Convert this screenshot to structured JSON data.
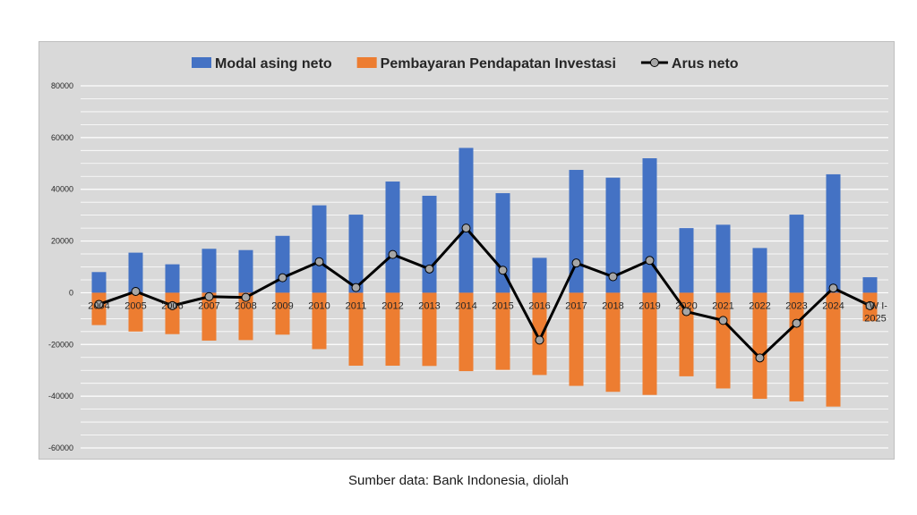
{
  "chart_data": {
    "type": "bar",
    "categories": [
      "2004",
      "2005",
      "2006",
      "2007",
      "2008",
      "2009",
      "2010",
      "2011",
      "2012",
      "2013",
      "2014",
      "2015",
      "2016",
      "2017",
      "2018",
      "2019",
      "2020",
      "2021",
      "2022",
      "2023",
      "2024",
      "TW I-2025"
    ],
    "series": [
      {
        "name": "Modal asing neto",
        "type": "bar",
        "color": "#4472c4",
        "values": [
          8000,
          15500,
          11000,
          17000,
          16500,
          22000,
          33800,
          30200,
          43000,
          37500,
          56000,
          38500,
          13500,
          47500,
          44500,
          52000,
          25000,
          26300,
          17300,
          30200,
          45800,
          6000
        ]
      },
      {
        "name": "Pembayaran Pendapatan Investasi",
        "type": "bar",
        "color": "#ed7d31",
        "values": [
          -12500,
          -15000,
          -16000,
          -18500,
          -18300,
          -16200,
          -21800,
          -28200,
          -28200,
          -28300,
          -30300,
          -29800,
          -31800,
          -36000,
          -38300,
          -39500,
          -32300,
          -37000,
          -41000,
          -42000,
          -44000,
          -11000
        ]
      },
      {
        "name": "Arus neto",
        "type": "line",
        "color": "#000000",
        "values": [
          -4500,
          500,
          -5000,
          -1500,
          -1800,
          5800,
          12000,
          2000,
          14800,
          9200,
          25000,
          8700,
          -18300,
          11500,
          6200,
          12500,
          -7300,
          -10700,
          -25200,
          -11800,
          1800,
          -5000
        ]
      }
    ],
    "ylim": [
      -60000,
      80000
    ],
    "yticks": [
      -60000,
      -40000,
      -20000,
      0,
      20000,
      40000,
      60000,
      80000
    ],
    "grid": true,
    "legend_position": "top",
    "title": "",
    "xlabel": "",
    "ylabel": ""
  },
  "legend": {
    "items": [
      "Modal asing neto",
      "Pembayaran Pendapatan Investasi",
      "Arus neto"
    ]
  },
  "source_note": "Sumber data: Bank Indonesia, diolah",
  "colors": {
    "panel_background": "#d9d9d9",
    "gridline": "#ffffff",
    "text": "#262626"
  }
}
